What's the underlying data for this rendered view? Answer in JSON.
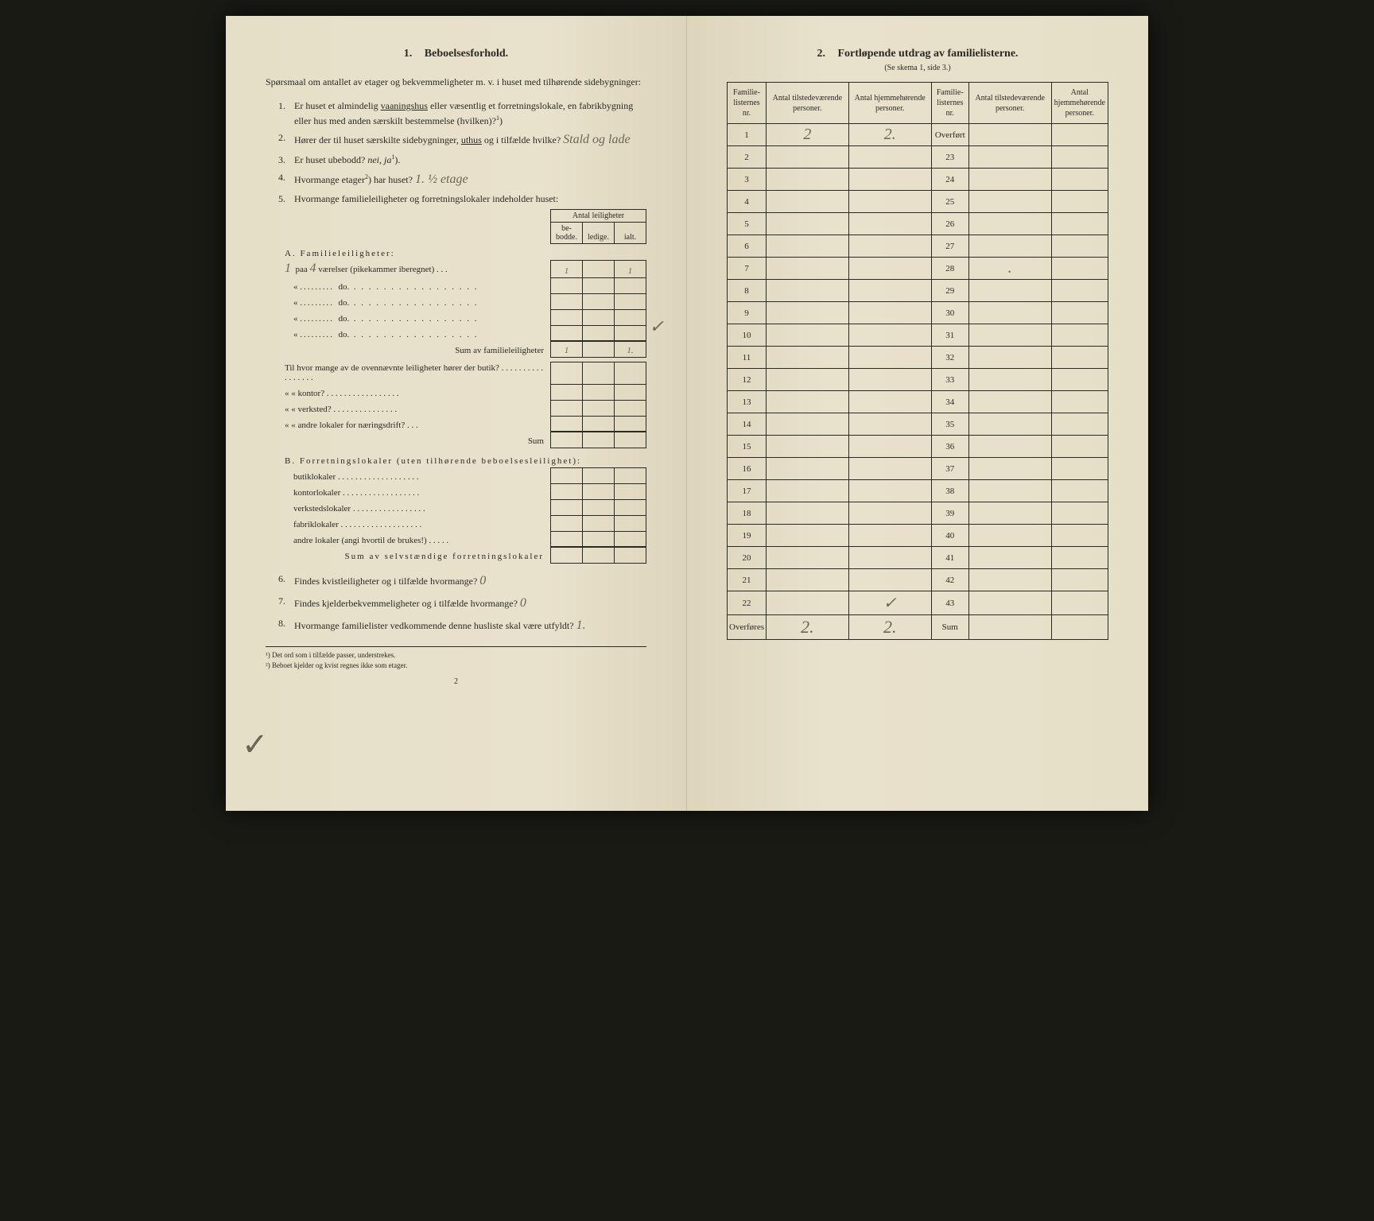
{
  "pageBackground": "#e8e1cc",
  "textColor": "#2a2a25",
  "handwritingColor": "#6a6555",
  "borderColor": "#2a2a25",
  "left": {
    "sectionNumber": "1.",
    "sectionTitle": "Beboelsesforhold.",
    "intro": "Spørsmaal om antallet av etager og bekvemmeligheter m. v. i huset med tilhørende sidebygninger:",
    "q1": {
      "num": "1.",
      "text1": "Er huset et almindelig ",
      "under1": "vaaningshus",
      "text2": " eller væsentlig et forretningslokale, en fabrikbygning eller hus med anden særskilt bestemmelse (hvilken)?",
      "sup": "1",
      "paren": ")"
    },
    "q2": {
      "num": "2.",
      "text1": "Hører der til huset særskilte sidebygninger, ",
      "under1": "uthus",
      "text2": " og i tilfælde hvilke?",
      "hand": "Stald og lade"
    },
    "q3": {
      "num": "3.",
      "text": "Er huset ubebodd?  ",
      "italic1": "nei",
      "comma": ",  ",
      "italic2": "ja",
      "sup": "1",
      "paren": ")."
    },
    "q4": {
      "num": "4.",
      "text": "Hvormange etager",
      "sup": "2",
      "text2": ") har huset?",
      "hand": "1. ½ etage"
    },
    "q5": {
      "num": "5.",
      "text": "Hvormange familieleiligheter og forretningslokaler indeholder huset:"
    },
    "tableHeader": {
      "top": "Antal leiligheter",
      "c1": "be-bodde.",
      "c2": "ledige.",
      "c3": "ialt."
    },
    "sectionA": {
      "title": "A. Familieleiligheter:",
      "rows": [
        {
          "prefix": "1",
          "label": "paa",
          "hand": "4",
          "text": "værelser (pikekammer iberegnet) . . .",
          "v1": "1",
          "v2": "",
          "v3": "1"
        },
        {
          "prefix": "«",
          "label": ".........",
          "text": "do.",
          "dots": ". . . . . . . . . . . . . . . . .",
          "v1": "",
          "v2": "",
          "v3": ""
        },
        {
          "prefix": "«",
          "label": ".........",
          "text": "do.",
          "dots": ". . . . . . . . . . . . . . . . .",
          "v1": "",
          "v2": "",
          "v3": ""
        },
        {
          "prefix": "«",
          "label": ".........",
          "text": "do.",
          "dots": ". . . . . . . . . . . . . . . . .",
          "v1": "",
          "v2": "",
          "v3": ""
        },
        {
          "prefix": "«",
          "label": ".........",
          "text": "do.",
          "dots": ". . . . . . . . . . . . . . . . .",
          "v1": "",
          "v2": "",
          "v3": ""
        }
      ],
      "sumLabel": "Sum av familieleiligheter",
      "sum": {
        "v1": "1",
        "v2": "",
        "v3": "1."
      },
      "check": "✓",
      "subQuestions": [
        "Til hvor mange av de ovennævnte leiligheter hører der butik? . . . . . . . . . . . . . . . . .",
        "«     «   kontor? . . . . . . . . . . . . . . . . .",
        "«     «   verksted? . . . . . . . . . . . . . . .",
        "«     «   andre lokaler for næringsdrift? . . ."
      ],
      "subSum": "Sum"
    },
    "sectionB": {
      "title": "B. Forretningslokaler (uten tilhørende beboelsesleilighet):",
      "rows": [
        "butiklokaler . . . . . . . . . . . . . . . . . . .",
        "kontorlokaler  . . . . . . . . . . . . . . . . . .",
        "verkstedslokaler . . . . . . . . . . . . . . . . .",
        "fabriklokaler . . . . . . . . . . . . . . . . . . .",
        "andre lokaler (angi hvortil de brukes!) . . . . ."
      ],
      "sumLabel": "Sum av selvstændige forretningslokaler"
    },
    "q6": {
      "num": "6.",
      "text": "Findes kvistleiligheter og i tilfælde hvormange?",
      "hand": "0"
    },
    "q7": {
      "num": "7.",
      "text": "Findes kjelderbekvemmeligheter og i tilfælde hvormange?",
      "hand": "0"
    },
    "q8": {
      "num": "8.",
      "text": "Hvormange familielister vedkommende denne husliste skal være utfyldt?",
      "hand": "1."
    },
    "footnote1": "¹) Det ord som i tilfælde passer, understrekes.",
    "footnote2": "²) Beboet kjelder og kvist regnes ikke som etager.",
    "pageNumber": "2",
    "bigCheck": "✓"
  },
  "right": {
    "sectionNumber": "2.",
    "sectionTitle": "Fortløpende utdrag av familielisterne.",
    "subtitle": "(Se skema 1, side 3.)",
    "headers": {
      "h1": "Familie-listernes nr.",
      "h2": "Antal tilstedeværende personer.",
      "h3": "Antal hjemmehørende personer.",
      "h4": "Familie-listernes nr.",
      "h5": "Antal tilstedeværende personer.",
      "h6": "Antal hjemmehørende personer."
    },
    "leftRows": [
      {
        "nr": "1",
        "v1": "2",
        "v2": "2."
      },
      {
        "nr": "2",
        "v1": "",
        "v2": ""
      },
      {
        "nr": "3",
        "v1": "",
        "v2": ""
      },
      {
        "nr": "4",
        "v1": "",
        "v2": ""
      },
      {
        "nr": "5",
        "v1": "",
        "v2": ""
      },
      {
        "nr": "6",
        "v1": "",
        "v2": ""
      },
      {
        "nr": "7",
        "v1": "",
        "v2": ""
      },
      {
        "nr": "8",
        "v1": "",
        "v2": ""
      },
      {
        "nr": "9",
        "v1": "",
        "v2": ""
      },
      {
        "nr": "10",
        "v1": "",
        "v2": ""
      },
      {
        "nr": "11",
        "v1": "",
        "v2": ""
      },
      {
        "nr": "12",
        "v1": "",
        "v2": ""
      },
      {
        "nr": "13",
        "v1": "",
        "v2": ""
      },
      {
        "nr": "14",
        "v1": "",
        "v2": ""
      },
      {
        "nr": "15",
        "v1": "",
        "v2": ""
      },
      {
        "nr": "16",
        "v1": "",
        "v2": ""
      },
      {
        "nr": "17",
        "v1": "",
        "v2": ""
      },
      {
        "nr": "18",
        "v1": "",
        "v2": ""
      },
      {
        "nr": "19",
        "v1": "",
        "v2": ""
      },
      {
        "nr": "20",
        "v1": "",
        "v2": ""
      },
      {
        "nr": "21",
        "v1": "",
        "v2": ""
      },
      {
        "nr": "22",
        "v1": "",
        "v2": "✓"
      }
    ],
    "rightRows": [
      {
        "nr": "Overført",
        "v1": "",
        "v2": ""
      },
      {
        "nr": "23",
        "v1": "",
        "v2": ""
      },
      {
        "nr": "24",
        "v1": "",
        "v2": ""
      },
      {
        "nr": "25",
        "v1": "",
        "v2": ""
      },
      {
        "nr": "26",
        "v1": "",
        "v2": ""
      },
      {
        "nr": "27",
        "v1": "",
        "v2": ""
      },
      {
        "nr": "28",
        "v1": ".",
        "v2": ""
      },
      {
        "nr": "29",
        "v1": "",
        "v2": ""
      },
      {
        "nr": "30",
        "v1": "",
        "v2": ""
      },
      {
        "nr": "31",
        "v1": "",
        "v2": ""
      },
      {
        "nr": "32",
        "v1": "",
        "v2": ""
      },
      {
        "nr": "33",
        "v1": "",
        "v2": ""
      },
      {
        "nr": "34",
        "v1": "",
        "v2": ""
      },
      {
        "nr": "35",
        "v1": "",
        "v2": ""
      },
      {
        "nr": "36",
        "v1": "",
        "v2": ""
      },
      {
        "nr": "37",
        "v1": "",
        "v2": ""
      },
      {
        "nr": "38",
        "v1": "",
        "v2": ""
      },
      {
        "nr": "39",
        "v1": "",
        "v2": ""
      },
      {
        "nr": "40",
        "v1": "",
        "v2": ""
      },
      {
        "nr": "41",
        "v1": "",
        "v2": ""
      },
      {
        "nr": "42",
        "v1": "",
        "v2": ""
      },
      {
        "nr": "43",
        "v1": "",
        "v2": ""
      }
    ],
    "footer": {
      "leftLabel": "Overføres",
      "leftV1": "2.",
      "leftV2": "2.",
      "rightLabel": "Sum",
      "rightV1": "",
      "rightV2": ""
    }
  }
}
